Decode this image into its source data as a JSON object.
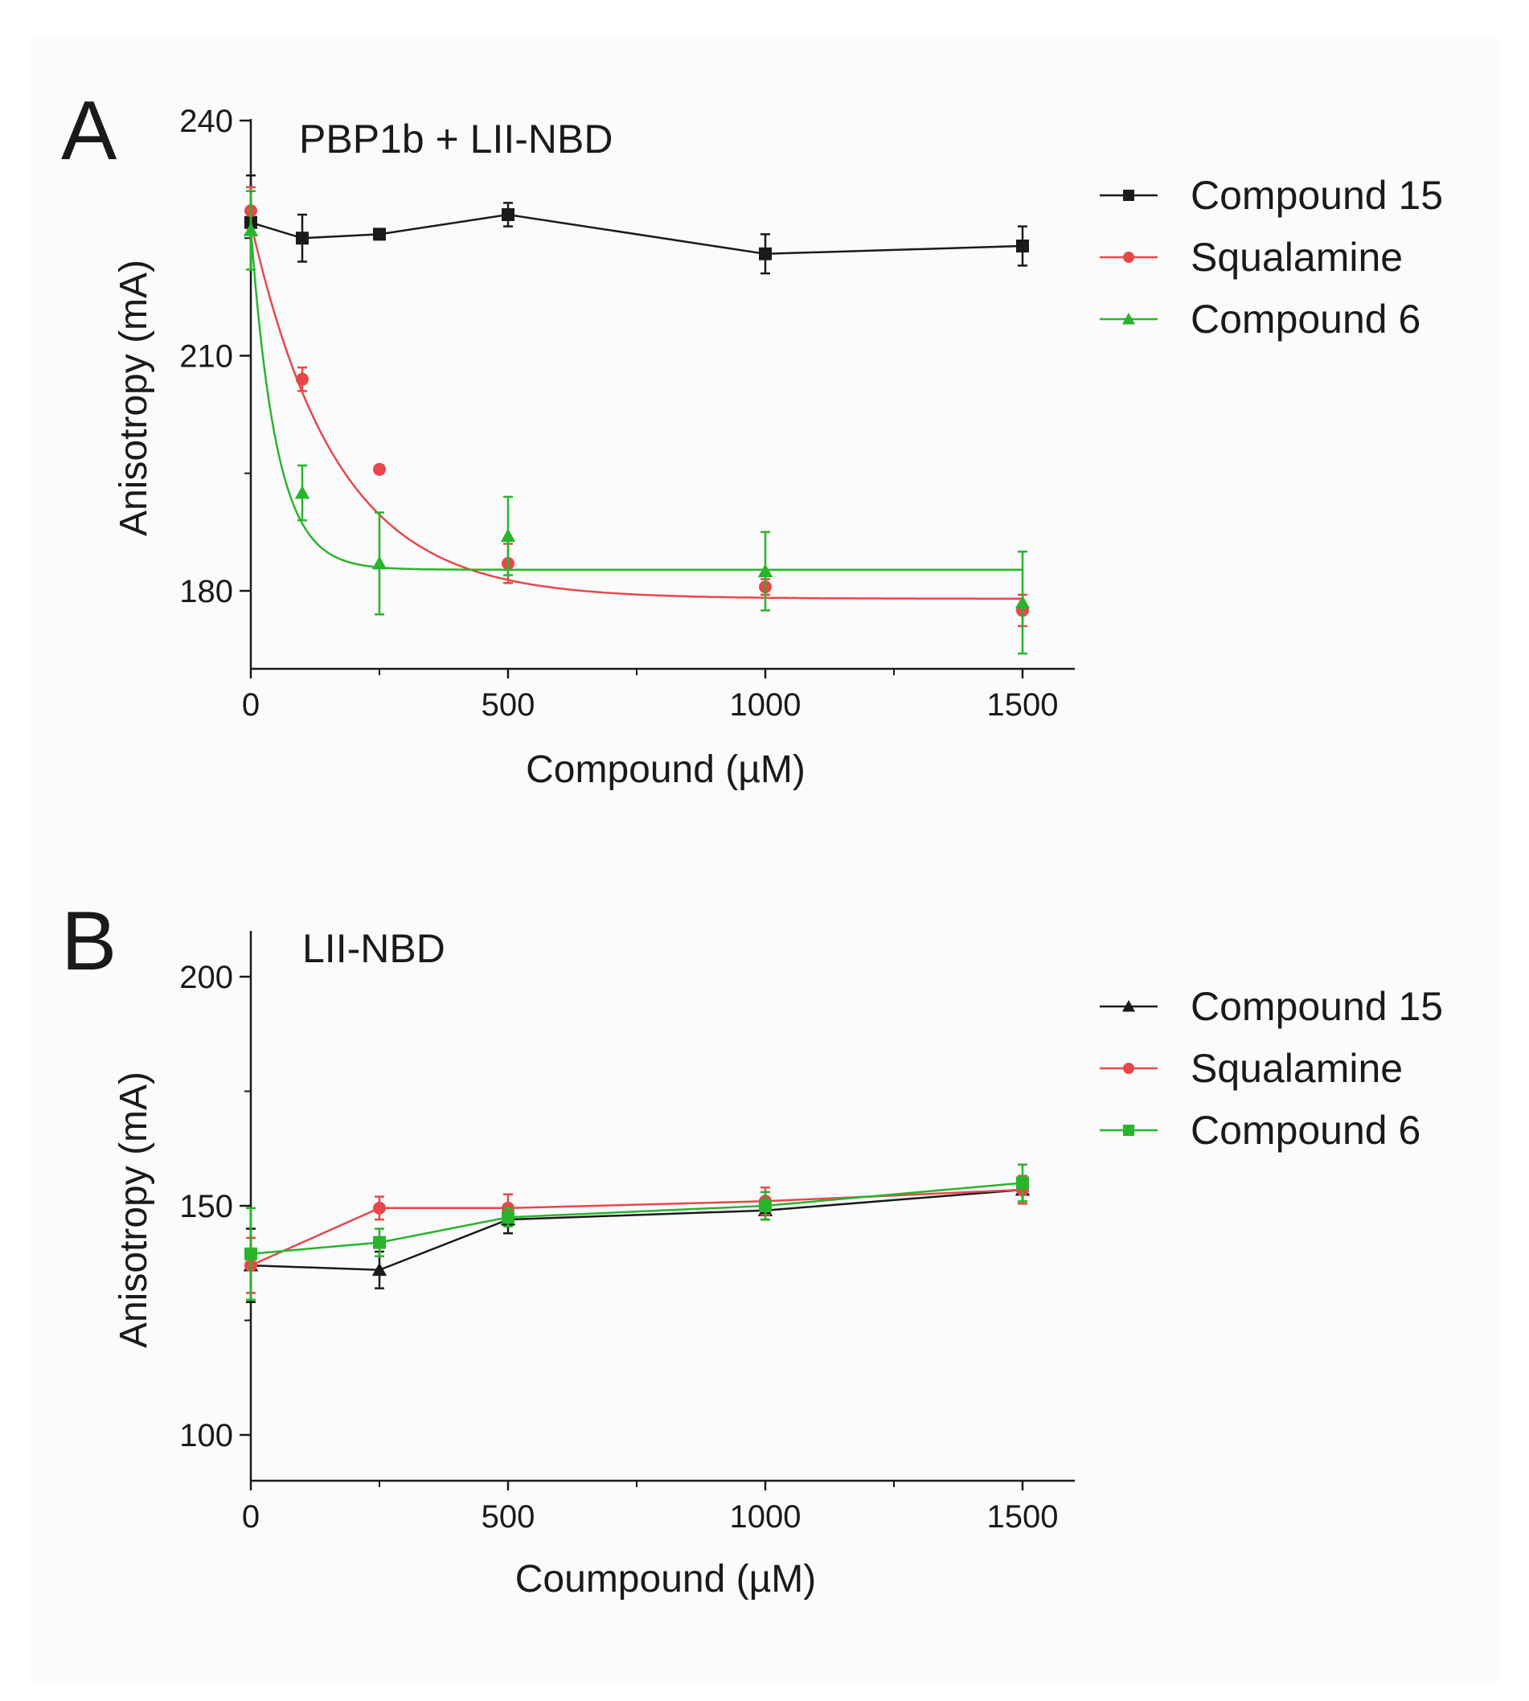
{
  "chart_data": [
    {
      "panel": "A",
      "type": "line",
      "title": "PBP1b + LII-NBD",
      "xlabel": "Compound (µM)",
      "ylabel": "Anisotropy (mA)",
      "xlim": [
        0,
        1600
      ],
      "ylim": [
        170,
        240
      ],
      "xticks": [
        0,
        500,
        1000,
        1500
      ],
      "xtick_labels": [
        "0",
        "500",
        "1000",
        "1500"
      ],
      "yticks": [
        180,
        210,
        240
      ],
      "ytick_labels": [
        "180",
        "210",
        "240"
      ],
      "legend": [
        "Compound 15",
        "Squalamine",
        "Compound 6"
      ],
      "legend_position": "right",
      "series": [
        {
          "name": "Compound 15",
          "color": "#1a1a1a",
          "marker": "square",
          "style": "line",
          "x": [
            0,
            100,
            250,
            500,
            1000,
            1500
          ],
          "y": [
            227,
            225,
            225.5,
            228,
            223,
            224
          ],
          "err": [
            6,
            3,
            0.5,
            1.5,
            2.5,
            2.5
          ]
        },
        {
          "name": "Squalamine",
          "color": "#e8474a",
          "marker": "circle",
          "style": "fit",
          "x": [
            0,
            100,
            250,
            500,
            1000,
            1500
          ],
          "y": [
            228.5,
            207,
            195.5,
            183.5,
            180.5,
            177.5
          ],
          "err": [
            3,
            1.5,
            0.5,
            2.5,
            1,
            2
          ],
          "fit": {
            "plateau": 179,
            "span": 48,
            "k": 0.006
          }
        },
        {
          "name": "Compound 6",
          "color": "#28b52b",
          "marker": "triangle",
          "style": "fit",
          "x": [
            0,
            100,
            250,
            500,
            1000,
            1500
          ],
          "y": [
            226,
            192.5,
            183.5,
            187,
            182.5,
            178.5
          ],
          "err": [
            5,
            3.5,
            6.5,
            5,
            5,
            6.5
          ],
          "fit": {
            "plateau": 182.7,
            "span": 43.5,
            "k": 0.02
          }
        }
      ]
    },
    {
      "panel": "B",
      "type": "line",
      "title": "LII-NBD",
      "xlabel": "Coumpound (µM)",
      "ylabel": "Anisotropy (mA)",
      "xlim": [
        0,
        1600
      ],
      "ylim": [
        90,
        210
      ],
      "xticks": [
        0,
        500,
        1000,
        1500
      ],
      "xtick_labels": [
        "0",
        "500",
        "1000",
        "1500"
      ],
      "yticks": [
        100,
        150,
        200
      ],
      "ytick_labels": [
        "100",
        "150",
        "200"
      ],
      "legend": [
        "Compound 15",
        "Squalamine",
        "Compound 6"
      ],
      "legend_position": "right",
      "series": [
        {
          "name": "Compound 15",
          "color": "#1a1a1a",
          "marker": "triangle",
          "style": "line",
          "x": [
            0,
            250,
            500,
            1000,
            1500
          ],
          "y": [
            137,
            136,
            147,
            149,
            153.5
          ],
          "err": [
            8,
            4,
            3,
            2,
            3
          ]
        },
        {
          "name": "Squalamine",
          "color": "#e8474a",
          "marker": "circle",
          "style": "line",
          "x": [
            0,
            250,
            500,
            1000,
            1500
          ],
          "y": [
            137,
            149.5,
            149.5,
            151,
            153.5
          ],
          "err": [
            6,
            2.5,
            3,
            3,
            3
          ]
        },
        {
          "name": "Compound 6",
          "color": "#28b52b",
          "marker": "square",
          "style": "line",
          "x": [
            0,
            250,
            500,
            1000,
            1500
          ],
          "y": [
            139.5,
            142,
            147.5,
            150,
            155
          ],
          "err": [
            10,
            3,
            2,
            3,
            4
          ]
        }
      ]
    }
  ]
}
